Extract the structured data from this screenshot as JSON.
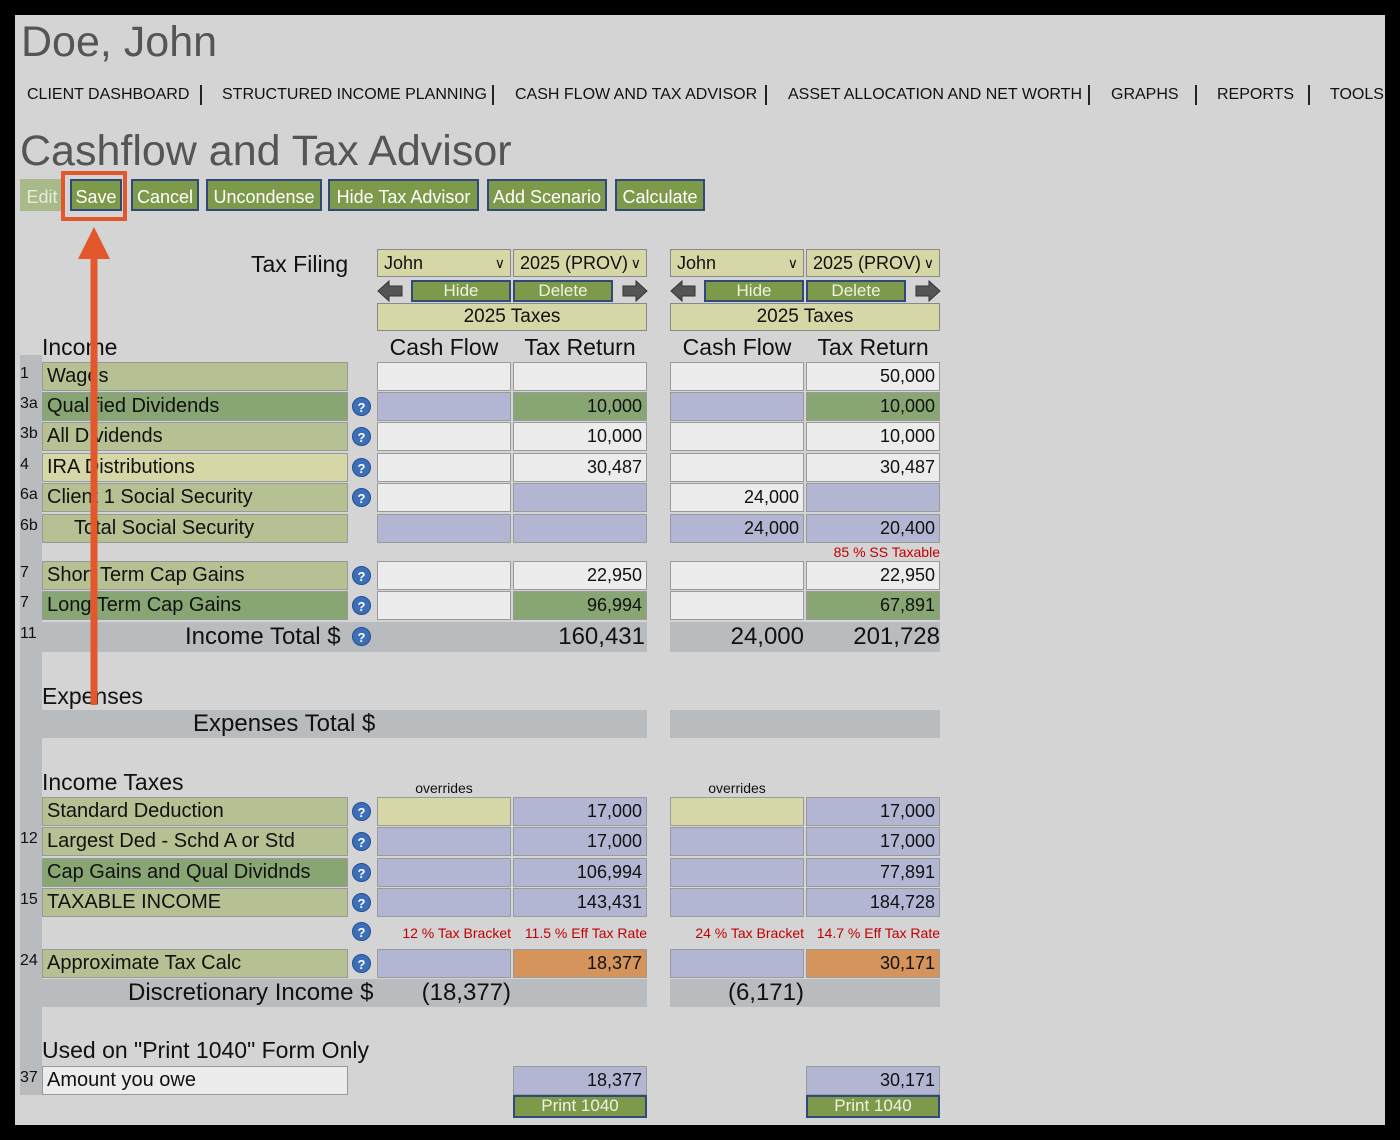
{
  "client_name": "Doe, John",
  "nav": [
    "CLIENT DASHBOARD",
    "STRUCTURED INCOME PLANNING",
    "CASH FLOW AND TAX ADVISOR",
    "ASSET ALLOCATION AND NET WORTH",
    "GRAPHS",
    "REPORTS",
    "TOOLS"
  ],
  "page_title": "Cashflow and Tax Advisor",
  "toolbar": {
    "edit": "Edit",
    "save": "Save",
    "cancel": "Cancel",
    "uncondense": "Uncondense",
    "hide_tax_advisor": "Hide Tax Advisor",
    "add_scenario": "Add Scenario",
    "calculate": "Calculate"
  },
  "tax_filing_label": "Tax Filing",
  "scenarios": [
    {
      "person": "John",
      "year": "2025 (PROV)",
      "hide": "Hide",
      "delete": "Delete",
      "taxes_header": "2025 Taxes",
      "col_cash": "Cash Flow",
      "col_tax": "Tax Return"
    },
    {
      "person": "John",
      "year": "2025 (PROV)",
      "hide": "Hide",
      "delete": "Delete",
      "taxes_header": "2025 Taxes",
      "col_cash": "Cash Flow",
      "col_tax": "Tax Return"
    }
  ],
  "sections": {
    "income": "Income",
    "expenses": "Expenses",
    "income_taxes": "Income Taxes",
    "print_only": "Used on \"Print 1040\" Form Only"
  },
  "rows": {
    "wages": {
      "num": "1",
      "label": "Wages",
      "s1_tax": "",
      "s2_tax": "50,000"
    },
    "qual_div": {
      "num": "3a",
      "label": "Qualified Dividends",
      "s1_tax": "10,000",
      "s2_tax": "10,000"
    },
    "all_div": {
      "num": "3b",
      "label": "All Dividends",
      "s1_tax": "10,000",
      "s2_tax": "10,000"
    },
    "ira": {
      "num": "4",
      "label": "IRA Distributions",
      "s1_tax": "30,487",
      "s2_tax": "30,487"
    },
    "client_ss": {
      "num": "6a",
      "label": "Client 1 Social Security",
      "s1_cash": "",
      "s2_cash": "24,000"
    },
    "total_ss": {
      "num": "6b",
      "label": "Total Social Security",
      "s2_cash": "24,000",
      "s2_tax": "20,400"
    },
    "ss_taxable": {
      "s2": "85 % SS Taxable"
    },
    "st_gains": {
      "num": "7",
      "label": "Short Term Cap Gains",
      "s1_tax": "22,950",
      "s2_tax": "22,950"
    },
    "lt_gains": {
      "num": "7",
      "label": "Long Term Cap Gains",
      "s1_tax": "96,994",
      "s2_tax": "67,891"
    },
    "income_total": {
      "num": "11",
      "label": "Income Total $",
      "s1_tax": "160,431",
      "s2_cash": "24,000",
      "s2_tax": "201,728"
    },
    "expenses_total": {
      "label": "Expenses Total $"
    },
    "overrides": "overrides",
    "std_ded": {
      "label": "Standard Deduction",
      "s1_tax": "17,000",
      "s2_tax": "17,000"
    },
    "largest_ded": {
      "num": "12",
      "label": "Largest Ded - Schd A or Std",
      "s1_tax": "17,000",
      "s2_tax": "17,000"
    },
    "cap_gains_qd": {
      "label": "Cap Gains and Qual Dividnds",
      "s1_tax": "106,994",
      "s2_tax": "77,891"
    },
    "taxable_income": {
      "num": "15",
      "label": "TAXABLE INCOME",
      "s1_tax": "143,431",
      "s2_tax": "184,728"
    },
    "brackets": {
      "s1_bracket": "12 % Tax Bracket",
      "s1_eff": "11.5 % Eff Tax Rate",
      "s2_bracket": "24 % Tax Bracket",
      "s2_eff": "14.7 % Eff Tax Rate"
    },
    "approx_tax": {
      "num": "24",
      "label": "Approximate Tax Calc",
      "s1_tax": "18,377",
      "s2_tax": "30,171"
    },
    "discretionary": {
      "label": "Discretionary Income $",
      "s1": "(18,377)",
      "s2": "(6,171)"
    },
    "amount_owe": {
      "num": "37",
      "label": "Amount you owe",
      "s1_tax": "18,377",
      "s2_tax": "30,171"
    },
    "print_1040": "Print 1040"
  },
  "colors": {
    "highlight": "#e2572b",
    "button_green": "#7d9a4b",
    "help_blue": "#3c6fb8"
  }
}
